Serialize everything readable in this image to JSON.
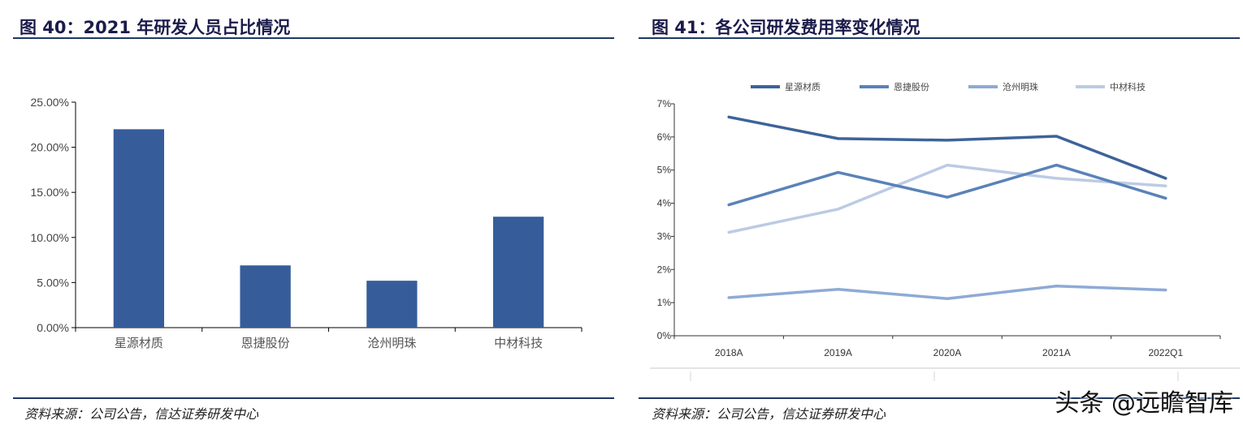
{
  "figures": [
    {
      "title": "图 40：2021 年研发人员占比情况",
      "source": "资料来源：公司公告，信达证券研发中心"
    },
    {
      "title": "图 41：各公司研发费用率变化情况",
      "source": "资料来源：公司公告，信达证券研发中心"
    }
  ],
  "watermark": "头条 @远瞻智库",
  "colors": {
    "title": "#1b1b4b",
    "rule": "#1f3864",
    "bar": "#365c9a",
    "series": [
      "#3d6399",
      "#5a82b8",
      "#8eaad6",
      "#bccbe4"
    ]
  },
  "chart_data": [
    {
      "type": "bar",
      "title": "",
      "xlabel": "",
      "ylabel": "",
      "categories": [
        "星源材质",
        "恩捷股份",
        "沧州明珠",
        "中材科技"
      ],
      "values": [
        22.0,
        6.9,
        5.2,
        12.3
      ],
      "ylim": [
        0,
        25
      ],
      "yticks": [
        "0.00%",
        "5.00%",
        "10.00%",
        "15.00%",
        "20.00%",
        "25.00%"
      ],
      "grid": false,
      "legend": "none"
    },
    {
      "type": "line",
      "title": "",
      "xlabel": "",
      "ylabel": "",
      "categories": [
        "2018A",
        "2019A",
        "2020A",
        "2021A",
        "2022Q1"
      ],
      "ylim": [
        0,
        7
      ],
      "yticks": [
        "0%",
        "1%",
        "2%",
        "3%",
        "4%",
        "5%",
        "6%",
        "7%"
      ],
      "grid": false,
      "legend": "top",
      "series": [
        {
          "name": "星源材质",
          "values": [
            6.6,
            5.95,
            5.9,
            6.02,
            4.75
          ]
        },
        {
          "name": "恩捷股份",
          "values": [
            3.95,
            4.93,
            4.18,
            5.15,
            4.15
          ]
        },
        {
          "name": "沧州明珠",
          "values": [
            1.15,
            1.4,
            1.12,
            1.5,
            1.38
          ]
        },
        {
          "name": "中材科技",
          "values": [
            3.12,
            3.82,
            5.15,
            4.75,
            4.52
          ]
        }
      ]
    }
  ]
}
